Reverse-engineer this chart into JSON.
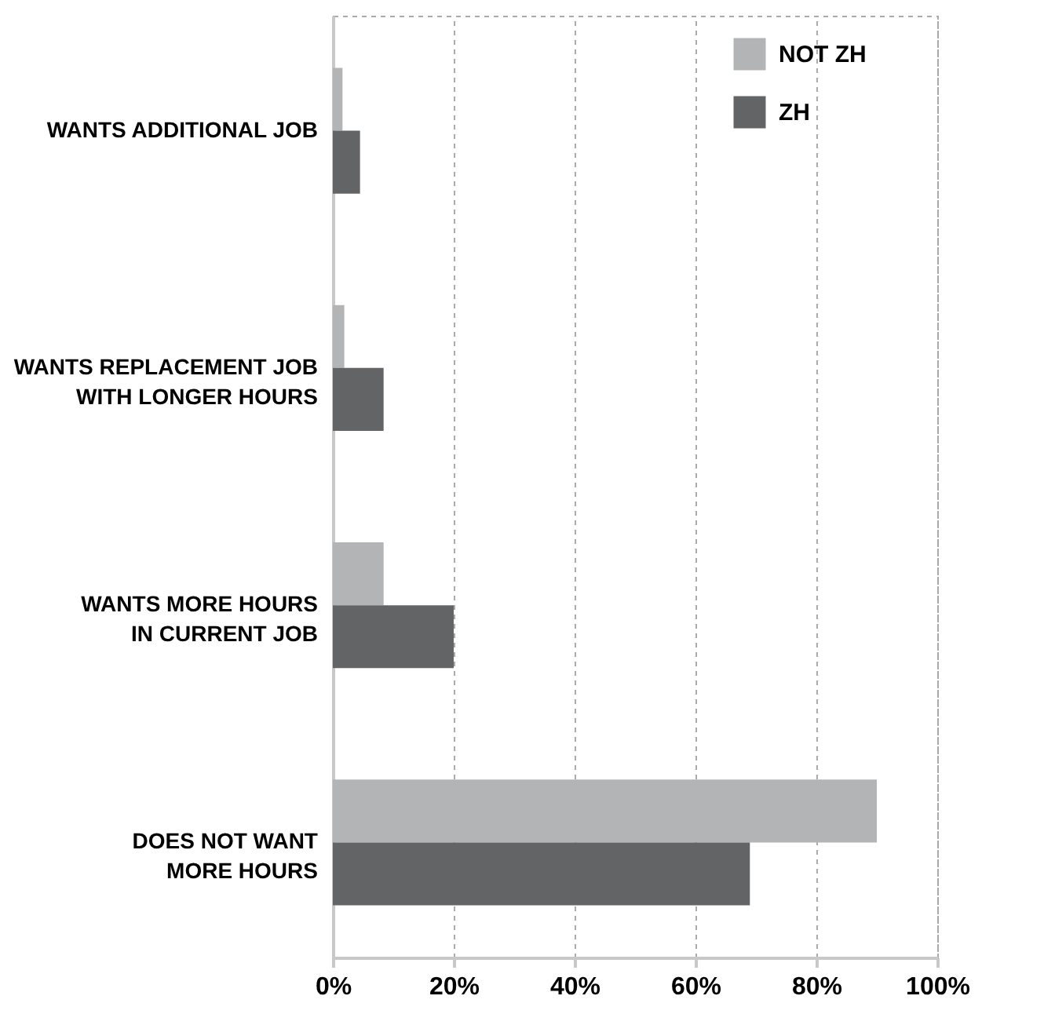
{
  "chart_data": {
    "type": "bar",
    "orientation": "horizontal",
    "categories": [
      "WANTS ADDITIONAL JOB",
      "WANTS REPLACEMENT JOB\nWITH LONGER HOURS",
      "WANTS MORE HOURS\nIN CURRENT JOB",
      "DOES NOT WANT\nMORE HOURS"
    ],
    "series": [
      {
        "name": "NOT ZH",
        "color": "#b3b4b5",
        "values": [
          1.6,
          1.9,
          8.4,
          90
        ]
      },
      {
        "name": "ZH",
        "color": "#636466",
        "values": [
          4.5,
          8.4,
          20,
          69
        ]
      }
    ],
    "xlim": [
      0,
      100
    ],
    "xticks": [
      {
        "value": 0,
        "label": "0%"
      },
      {
        "value": 20,
        "label": "20%"
      },
      {
        "value": 40,
        "label": "40%"
      },
      {
        "value": 60,
        "label": "60%"
      },
      {
        "value": 80,
        "label": "80%"
      },
      {
        "value": 100,
        "label": "100%"
      }
    ],
    "grid": "x",
    "legend": "top right"
  }
}
